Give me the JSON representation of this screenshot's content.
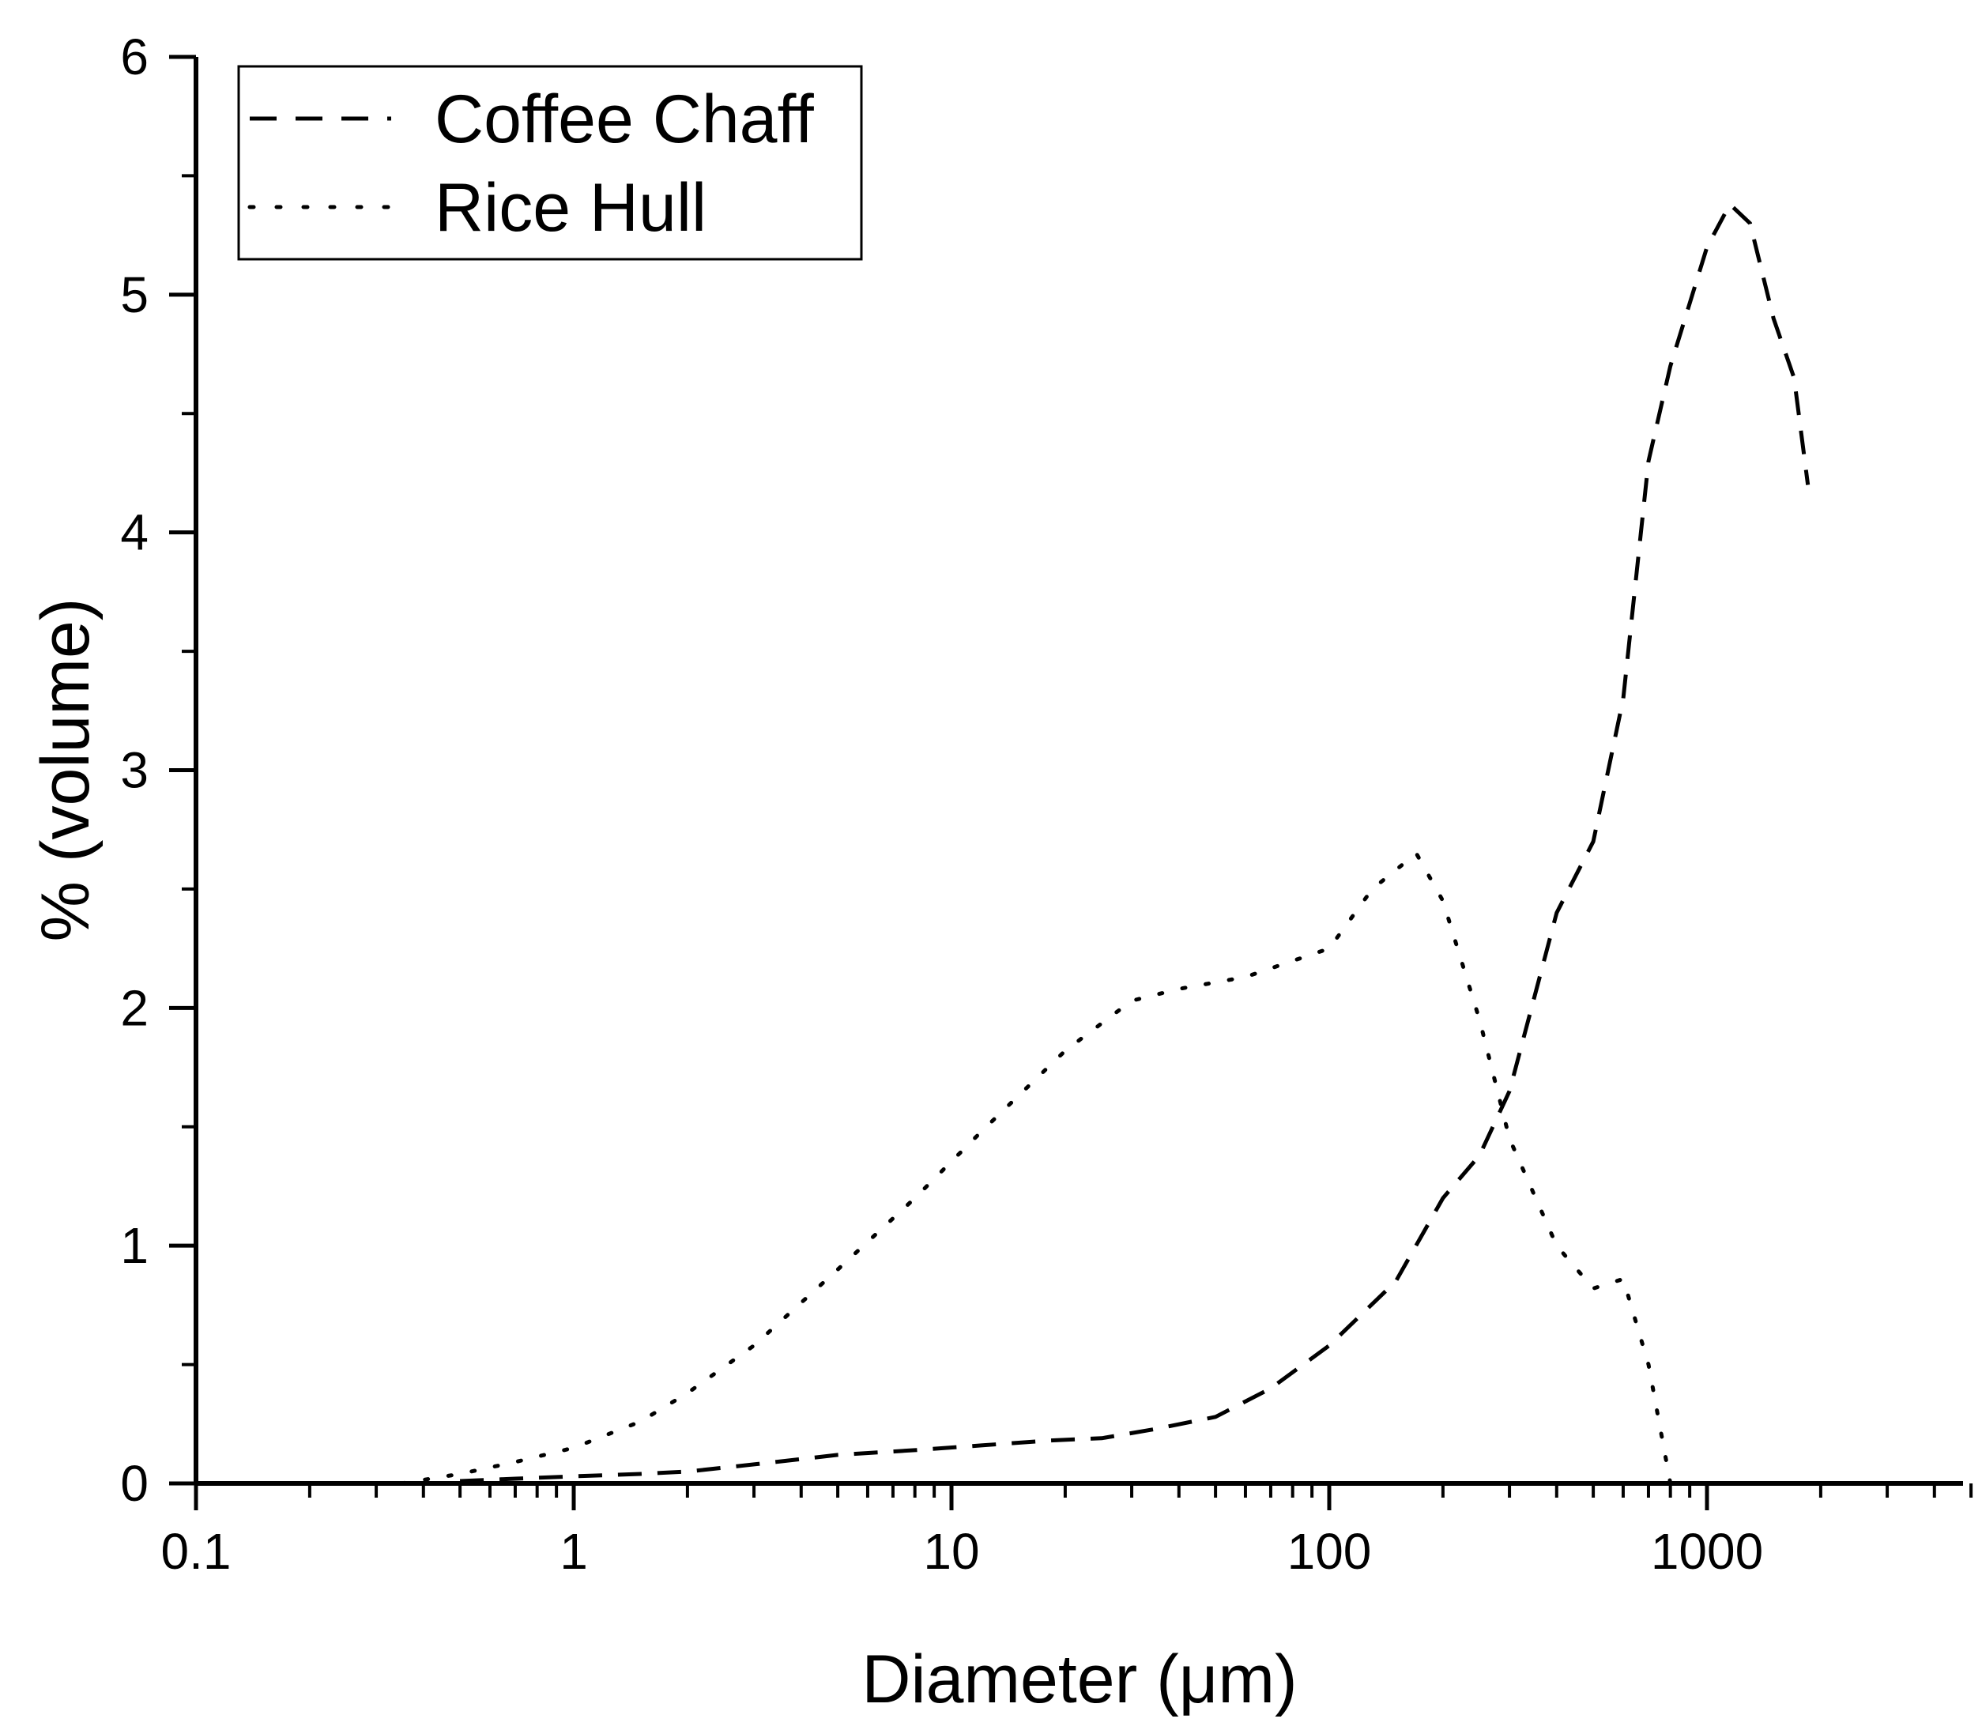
{
  "chart_data": {
    "type": "line",
    "title": "",
    "xlabel": "Diameter (μm)",
    "ylabel": "% (volume)",
    "xscale": "log",
    "xlim": [
      0.1,
      5500
    ],
    "ylim": [
      0,
      6
    ],
    "x_tick_labels": [
      "0.1",
      "1",
      "10",
      "100",
      "1000"
    ],
    "y_tick_labels": [
      "0",
      "1",
      "2",
      "3",
      "4",
      "5",
      "6"
    ],
    "grid": false,
    "legend": "top-left",
    "series": [
      {
        "name": "Coffee Chaff",
        "style": "dashed",
        "color": "#000000",
        "x": [
          0.5,
          0.7,
          1,
          1.5,
          2,
          3,
          5,
          8,
          12,
          18,
          25,
          35,
          50,
          70,
          100,
          150,
          200,
          250,
          300,
          400,
          500,
          600,
          700,
          800,
          1000,
          1150,
          1300,
          1500,
          1700,
          1850
        ],
        "y": [
          0.01,
          0.02,
          0.03,
          0.04,
          0.05,
          0.08,
          0.12,
          0.14,
          0.16,
          0.18,
          0.19,
          0.23,
          0.28,
          0.4,
          0.58,
          0.85,
          1.2,
          1.38,
          1.65,
          2.4,
          2.7,
          3.3,
          4.3,
          4.7,
          5.2,
          5.38,
          5.3,
          4.9,
          4.65,
          4.2
        ]
      },
      {
        "name": "Rice Hull",
        "style": "dotted",
        "color": "#000000",
        "x": [
          0.35,
          0.5,
          0.7,
          1,
          1.5,
          2,
          3,
          5,
          8,
          12,
          20,
          30,
          40,
          60,
          100,
          130,
          170,
          200,
          250,
          300,
          400,
          500,
          600,
          700,
          800
        ],
        "y": [
          0.0,
          0.04,
          0.09,
          0.15,
          0.26,
          0.38,
          0.58,
          0.9,
          1.2,
          1.48,
          1.82,
          2.03,
          2.08,
          2.13,
          2.25,
          2.5,
          2.65,
          2.45,
          1.95,
          1.45,
          1.0,
          0.82,
          0.86,
          0.5,
          0.0
        ]
      }
    ]
  }
}
